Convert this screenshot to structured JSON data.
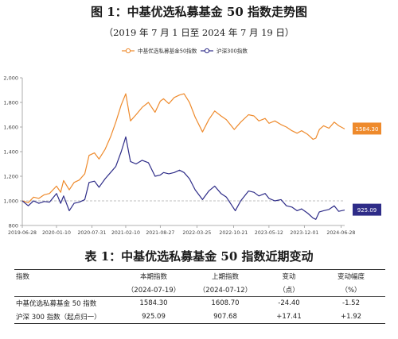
{
  "figure": {
    "title": "图 1：中基优选私募基金 50 指数走势图",
    "subtitle": "（2019 年 7 月 1 日至 2024 年 7 月 19 日）"
  },
  "colors": {
    "fund": "#ee8a2c",
    "csi": "#2e2c88",
    "axis": "#999999",
    "baseline": "#aaaaaa"
  },
  "chart_data": {
    "type": "line",
    "legend_position": "top-center",
    "grid": false,
    "ylim": [
      800,
      2000
    ],
    "yticks": [
      800,
      1000,
      1200,
      1400,
      1600,
      1800,
      2000
    ],
    "ytick_labels": [
      "800",
      "1,000",
      "1,200",
      "1,400",
      "1,600",
      "1,800",
      "2,000"
    ],
    "xlim": [
      "2019-06-28",
      "2024-07-19"
    ],
    "xticks": [
      "2019-06-28",
      "2020-01-10",
      "2020-07-31",
      "2021-02-10",
      "2021-08-27",
      "2022-03-25",
      "2022-10-21",
      "2023-05-12",
      "2023-12-01",
      "2024-06-28"
    ],
    "reference_line": 1000,
    "end_labels": {
      "fund": "1584.30",
      "csi": "925.09"
    },
    "series": [
      {
        "name": "中基优选私募基金50指数",
        "color": "#ee8a2c",
        "points": [
          [
            "2019-06-28",
            1000
          ],
          [
            "2019-08-01",
            985
          ],
          [
            "2019-09-01",
            1030
          ],
          [
            "2019-10-01",
            1020
          ],
          [
            "2019-11-01",
            1050
          ],
          [
            "2019-12-01",
            1060
          ],
          [
            "2020-01-10",
            1120
          ],
          [
            "2020-02-03",
            1070
          ],
          [
            "2020-02-20",
            1165
          ],
          [
            "2020-03-23",
            1090
          ],
          [
            "2020-04-20",
            1150
          ],
          [
            "2020-05-20",
            1170
          ],
          [
            "2020-06-20",
            1220
          ],
          [
            "2020-07-15",
            1370
          ],
          [
            "2020-08-15",
            1390
          ],
          [
            "2020-09-10",
            1340
          ],
          [
            "2020-10-15",
            1420
          ],
          [
            "2020-11-15",
            1520
          ],
          [
            "2020-12-15",
            1640
          ],
          [
            "2021-01-15",
            1780
          ],
          [
            "2021-02-10",
            1870
          ],
          [
            "2021-03-09",
            1650
          ],
          [
            "2021-04-10",
            1700
          ],
          [
            "2021-05-15",
            1760
          ],
          [
            "2021-06-20",
            1800
          ],
          [
            "2021-07-28",
            1720
          ],
          [
            "2021-08-27",
            1810
          ],
          [
            "2021-09-15",
            1830
          ],
          [
            "2021-10-15",
            1790
          ],
          [
            "2021-11-15",
            1840
          ],
          [
            "2021-12-15",
            1860
          ],
          [
            "2022-01-10",
            1870
          ],
          [
            "2022-02-10",
            1800
          ],
          [
            "2022-03-15",
            1680
          ],
          [
            "2022-04-26",
            1560
          ],
          [
            "2022-06-01",
            1660
          ],
          [
            "2022-07-05",
            1730
          ],
          [
            "2022-08-10",
            1690
          ],
          [
            "2022-09-10",
            1660
          ],
          [
            "2022-10-25",
            1580
          ],
          [
            "2022-12-01",
            1640
          ],
          [
            "2023-01-15",
            1700
          ],
          [
            "2023-02-15",
            1690
          ],
          [
            "2023-03-15",
            1650
          ],
          [
            "2023-04-20",
            1670
          ],
          [
            "2023-05-12",
            1630
          ],
          [
            "2023-06-15",
            1650
          ],
          [
            "2023-07-20",
            1620
          ],
          [
            "2023-08-20",
            1600
          ],
          [
            "2023-09-20",
            1570
          ],
          [
            "2023-10-20",
            1550
          ],
          [
            "2023-11-15",
            1570
          ],
          [
            "2023-12-20",
            1540
          ],
          [
            "2024-01-20",
            1500
          ],
          [
            "2024-02-05",
            1510
          ],
          [
            "2024-02-25",
            1580
          ],
          [
            "2024-03-20",
            1610
          ],
          [
            "2024-04-20",
            1590
          ],
          [
            "2024-05-20",
            1640
          ],
          [
            "2024-06-15",
            1610
          ],
          [
            "2024-07-19",
            1584.3
          ]
        ]
      },
      {
        "name": "沪深300指数",
        "color": "#2e2c88",
        "points": [
          [
            "2019-06-28",
            1000
          ],
          [
            "2019-08-01",
            960
          ],
          [
            "2019-09-01",
            1000
          ],
          [
            "2019-10-01",
            980
          ],
          [
            "2019-11-01",
            995
          ],
          [
            "2019-12-01",
            990
          ],
          [
            "2020-01-10",
            1060
          ],
          [
            "2020-02-03",
            980
          ],
          [
            "2020-02-20",
            1040
          ],
          [
            "2020-03-23",
            920
          ],
          [
            "2020-04-20",
            980
          ],
          [
            "2020-05-20",
            990
          ],
          [
            "2020-06-20",
            1010
          ],
          [
            "2020-07-15",
            1150
          ],
          [
            "2020-08-15",
            1160
          ],
          [
            "2020-09-10",
            1110
          ],
          [
            "2020-10-15",
            1180
          ],
          [
            "2020-11-15",
            1230
          ],
          [
            "2020-12-15",
            1280
          ],
          [
            "2021-01-15",
            1400
          ],
          [
            "2021-02-10",
            1520
          ],
          [
            "2021-03-09",
            1320
          ],
          [
            "2021-04-10",
            1300
          ],
          [
            "2021-05-15",
            1330
          ],
          [
            "2021-06-20",
            1310
          ],
          [
            "2021-07-28",
            1200
          ],
          [
            "2021-08-27",
            1210
          ],
          [
            "2021-09-15",
            1230
          ],
          [
            "2021-10-15",
            1220
          ],
          [
            "2021-11-15",
            1230
          ],
          [
            "2021-12-15",
            1250
          ],
          [
            "2022-01-10",
            1230
          ],
          [
            "2022-02-10",
            1180
          ],
          [
            "2022-03-15",
            1090
          ],
          [
            "2022-04-26",
            1010
          ],
          [
            "2022-06-01",
            1080
          ],
          [
            "2022-07-05",
            1120
          ],
          [
            "2022-08-10",
            1060
          ],
          [
            "2022-09-10",
            1030
          ],
          [
            "2022-10-31",
            920
          ],
          [
            "2022-12-01",
            1000
          ],
          [
            "2023-01-15",
            1080
          ],
          [
            "2023-02-15",
            1070
          ],
          [
            "2023-03-15",
            1040
          ],
          [
            "2023-04-20",
            1060
          ],
          [
            "2023-05-12",
            1020
          ],
          [
            "2023-06-15",
            1000
          ],
          [
            "2023-07-20",
            1010
          ],
          [
            "2023-08-20",
            960
          ],
          [
            "2023-09-20",
            950
          ],
          [
            "2023-10-20",
            920
          ],
          [
            "2023-11-15",
            935
          ],
          [
            "2023-12-20",
            900
          ],
          [
            "2024-01-20",
            860
          ],
          [
            "2024-02-05",
            850
          ],
          [
            "2024-02-25",
            910
          ],
          [
            "2024-03-20",
            920
          ],
          [
            "2024-04-20",
            930
          ],
          [
            "2024-05-20",
            960
          ],
          [
            "2024-06-15",
            915
          ],
          [
            "2024-07-19",
            925.09
          ]
        ]
      }
    ]
  },
  "table": {
    "title": "表 1：中基优选私募基金 50 指数近期变动",
    "headers": [
      {
        "top": "指数",
        "bottom": ""
      },
      {
        "top": "本期指数",
        "bottom": "（2024-07-19）"
      },
      {
        "top": "上期指数",
        "bottom": "（2024-07-12）"
      },
      {
        "top": "变动",
        "bottom": "（点）"
      },
      {
        "top": "变动幅度",
        "bottom": "（%）"
      }
    ],
    "rows": [
      [
        "中基优选私募基金 50 指数",
        "1584.30",
        "1608.70",
        "-24.40",
        "-1.52"
      ],
      [
        "沪深 300 指数（起点归一）",
        "925.09",
        "907.68",
        "+17.41",
        "+1.92"
      ]
    ]
  }
}
